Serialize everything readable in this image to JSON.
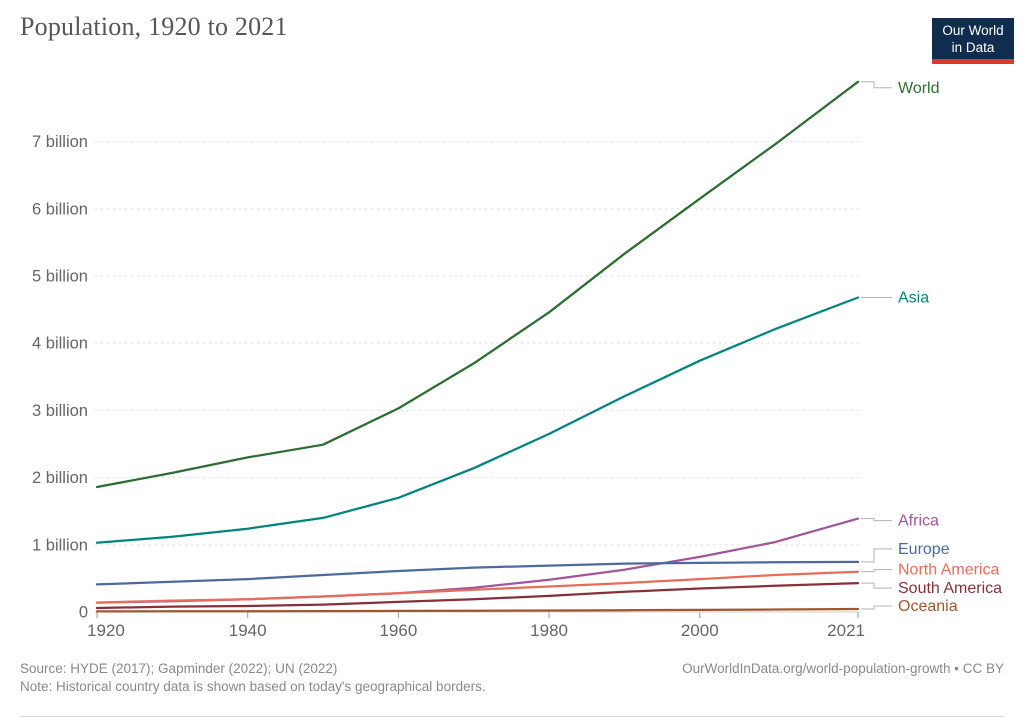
{
  "header": {
    "title": "Population, 1920 to 2021",
    "logo": {
      "line1": "Our World",
      "line2": "in Data",
      "bg_color": "#102d50",
      "bar_color": "#d93a2e"
    }
  },
  "chart_data": {
    "type": "line",
    "title": "Population, 1920 to 2021",
    "xlabel": "",
    "ylabel": "",
    "unit": "billion people",
    "xlim": [
      1920,
      2021
    ],
    "ylim": [
      0,
      7.95
    ],
    "grid": "horizontal-dashed",
    "legend_position": "right-end-labels",
    "x": [
      1920,
      1930,
      1940,
      1950,
      1960,
      1970,
      1980,
      1990,
      2000,
      2010,
      2021
    ],
    "x_tick_labels": [
      "1920",
      "1940",
      "1960",
      "1980",
      "2000",
      "2021"
    ],
    "x_ticks": [
      1920,
      1940,
      1960,
      1980,
      2000,
      2021
    ],
    "y_ticks": [
      {
        "value": 0,
        "label": "0"
      },
      {
        "value": 1,
        "label": "1 billion"
      },
      {
        "value": 2,
        "label": "2 billion"
      },
      {
        "value": 3,
        "label": "3 billion"
      },
      {
        "value": 4,
        "label": "4 billion"
      },
      {
        "value": 5,
        "label": "5 billion"
      },
      {
        "value": 6,
        "label": "6 billion"
      },
      {
        "value": 7,
        "label": "7 billion"
      }
    ],
    "series": [
      {
        "name": "World",
        "color": "#2c6e31",
        "label_dy": 6,
        "values": [
          1.86,
          2.07,
          2.3,
          2.49,
          3.03,
          3.7,
          4.46,
          5.33,
          6.15,
          6.96,
          7.89
        ]
      },
      {
        "name": "Asia",
        "color": "#00847e",
        "label_dy": 0,
        "values": [
          1.03,
          1.12,
          1.24,
          1.4,
          1.7,
          2.14,
          2.65,
          3.21,
          3.74,
          4.21,
          4.68
        ]
      },
      {
        "name": "Africa",
        "color": "#a2559c",
        "label_dy": 2,
        "values": [
          0.14,
          0.16,
          0.19,
          0.23,
          0.28,
          0.36,
          0.48,
          0.63,
          0.82,
          1.04,
          1.39
        ]
      },
      {
        "name": "Europe",
        "color": "#4c6a9c",
        "label_dy": -13,
        "values": [
          0.41,
          0.45,
          0.49,
          0.55,
          0.61,
          0.66,
          0.69,
          0.72,
          0.73,
          0.74,
          0.745
        ]
      },
      {
        "name": "North America",
        "color": "#e56e5a",
        "label_dy": -2,
        "values": [
          0.14,
          0.17,
          0.19,
          0.23,
          0.28,
          0.33,
          0.38,
          0.43,
          0.49,
          0.55,
          0.6
        ]
      },
      {
        "name": "South America",
        "color": "#883039",
        "label_dy": 5,
        "values": [
          0.06,
          0.08,
          0.09,
          0.11,
          0.15,
          0.19,
          0.24,
          0.3,
          0.35,
          0.39,
          0.43
        ]
      },
      {
        "name": "Oceania",
        "color": "#a0562e",
        "label_dy": -3,
        "values": [
          0.009,
          0.01,
          0.011,
          0.013,
          0.016,
          0.02,
          0.023,
          0.027,
          0.031,
          0.037,
          0.044
        ]
      }
    ]
  },
  "footer": {
    "source": "Source: HYDE (2017); Gapminder (2022); UN (2022)",
    "note": "Note: Historical country data is shown based on today's geographical borders.",
    "link": "OurWorldInData.org/world-population-growth • CC BY"
  },
  "colors": {
    "title": "#565656",
    "axis_text": "#666666",
    "gridline": "#dddddd",
    "zero_line": "#cccccc",
    "tick": "#999999",
    "connector": "#b3b3b3",
    "footer_text": "#898989"
  }
}
